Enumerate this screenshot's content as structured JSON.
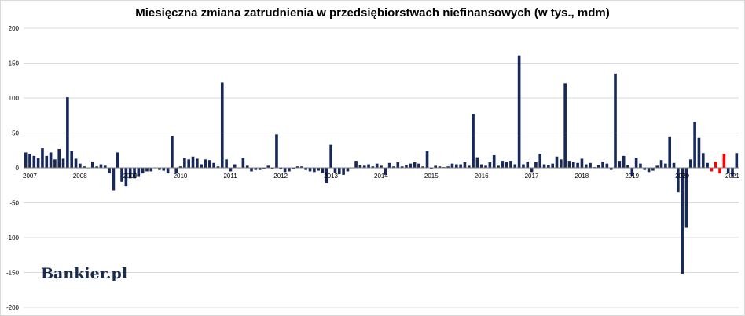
{
  "chart_data": {
    "type": "bar",
    "title": "Miesięczna zmiana zatrudnienia w przedsiębiorstwach niefinansowych (w tys., mdm)",
    "xlabel": "",
    "ylabel": "",
    "ylim": [
      -200,
      200
    ],
    "yticks": [
      200,
      150,
      100,
      50,
      0,
      -50,
      -100,
      -150,
      -200
    ],
    "year_labels": [
      "2007",
      "2008",
      "2009",
      "2010",
      "2011",
      "2012",
      "2013",
      "2014",
      "2015",
      "2016",
      "2017",
      "2018",
      "2019",
      "2020",
      "2021"
    ],
    "grid": true,
    "legend": "none",
    "colors": {
      "positive_years": "#17285a",
      "pandemic_bars": "#ff0000",
      "grid": "#d9d9d9"
    },
    "series": [
      {
        "values": [
          22,
          20,
          17,
          14,
          28,
          17,
          22,
          12,
          27,
          13,
          101,
          24,
          13,
          6,
          2,
          0,
          9,
          2,
          5,
          3,
          -8,
          -32,
          22,
          -20,
          -26,
          -15,
          -15,
          -13,
          -8,
          -5,
          -5,
          0,
          -3,
          -4,
          -8,
          46,
          -8,
          2,
          14,
          12,
          16,
          13,
          5,
          12,
          11,
          7,
          2,
          122,
          12,
          -5,
          5,
          0,
          14,
          3,
          -5,
          -3,
          -3,
          -2,
          3,
          -2,
          48,
          -2,
          -6,
          -5,
          -2,
          2,
          2,
          -3,
          -5,
          -6,
          -4,
          -7,
          -22,
          33,
          -7,
          -9,
          -10,
          -5,
          0,
          10,
          4,
          3,
          5,
          2,
          6,
          3,
          -10,
          7,
          2,
          8,
          2,
          4,
          6,
          8,
          6,
          2,
          24,
          -2,
          3,
          2,
          1,
          2,
          6,
          5,
          5,
          8,
          3,
          77,
          15,
          5,
          3,
          8,
          18,
          3,
          10,
          8,
          10,
          5,
          161,
          5,
          9,
          -6,
          8,
          20,
          5,
          4,
          6,
          16,
          12,
          121,
          10,
          8,
          7,
          13,
          5,
          7,
          1,
          4,
          9,
          6,
          -3,
          135,
          10,
          17,
          4,
          -12,
          14,
          6,
          -3,
          -6,
          -4,
          3,
          11,
          6,
          44,
          7,
          -35,
          -152,
          -86,
          12,
          66,
          43,
          21,
          7,
          -5,
          9,
          -8,
          20,
          -8,
          -13,
          21
        ]
      }
    ],
    "red_bars_range": [
      [
        164,
        167
      ],
      [
        180,
        183
      ]
    ]
  },
  "brand": {
    "name": "Bankier.pl"
  }
}
